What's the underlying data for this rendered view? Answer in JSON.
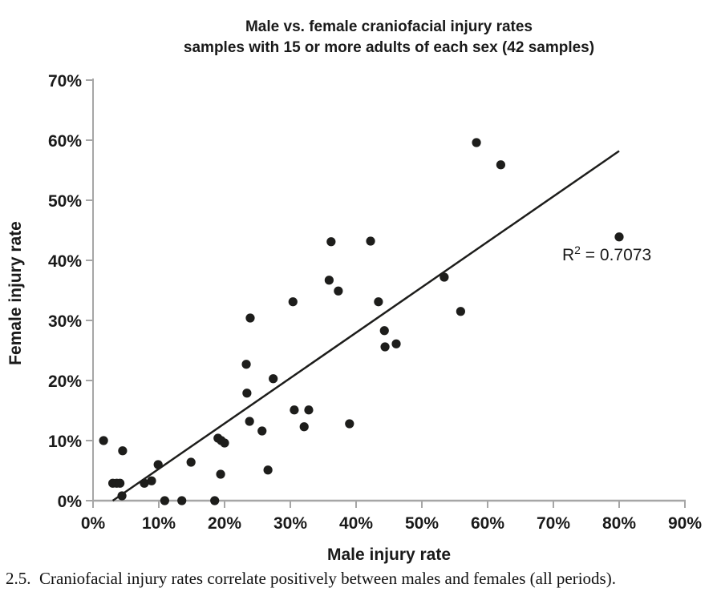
{
  "chart": {
    "title_line1": "Male vs. female craniofacial injury rates",
    "title_line2": "samples with 15 or more adults of each sex (42 samples)"
  },
  "annotation": {
    "base": "R",
    "sup": "2",
    "rest": " = 0.7073"
  },
  "caption": "2.5.  Craniofacial injury rates correlate positively between males and females (all periods).",
  "colors": {
    "ink": "#1d1d1b",
    "axis": "#a6a6a6",
    "text": "#1a1a1a",
    "background": "#ffffff"
  },
  "chart_data": {
    "type": "scatter",
    "title": "Male vs. female craniofacial injury rates — samples with 15 or more adults of each sex (42 samples)",
    "xlabel": "Male injury rate",
    "ylabel": "Female  injury rate",
    "xlim": [
      0,
      90
    ],
    "ylim": [
      0,
      70
    ],
    "x_tick_values": [
      0,
      10,
      20,
      30,
      40,
      50,
      60,
      70,
      80,
      90
    ],
    "x_tick_labels": [
      "0%",
      "10%",
      "20%",
      "30%",
      "40%",
      "50%",
      "60%",
      "70%",
      "80%",
      "90%"
    ],
    "y_tick_values": [
      0,
      10,
      20,
      30,
      40,
      50,
      60,
      70
    ],
    "y_tick_labels": [
      "0%",
      "10%",
      "20%",
      "30%",
      "40%",
      "50%",
      "60%",
      "70%"
    ],
    "grid": false,
    "legend": "none",
    "r_squared": 0.7073,
    "annotation_position_pct": {
      "x": 76,
      "y": 41
    },
    "trendline": {
      "x1": 3.0,
      "y1": 0.0,
      "x2": 80.0,
      "y2": 58.2
    },
    "points": [
      [
        1.6,
        10.0
      ],
      [
        4.5,
        8.3
      ],
      [
        3.0,
        2.9
      ],
      [
        3.6,
        2.9
      ],
      [
        4.1,
        2.9
      ],
      [
        4.4,
        0.8
      ],
      [
        7.8,
        2.9
      ],
      [
        8.9,
        3.3
      ],
      [
        9.9,
        6.0
      ],
      [
        10.9,
        0.0
      ],
      [
        13.5,
        0.0
      ],
      [
        14.9,
        6.4
      ],
      [
        18.5,
        0.0
      ],
      [
        19.0,
        10.4
      ],
      [
        19.5,
        10.0
      ],
      [
        20.0,
        9.6
      ],
      [
        19.4,
        4.4
      ],
      [
        23.3,
        22.7
      ],
      [
        27.4,
        20.3
      ],
      [
        23.4,
        17.9
      ],
      [
        30.6,
        15.1
      ],
      [
        32.8,
        15.1
      ],
      [
        32.1,
        12.3
      ],
      [
        23.8,
        13.2
      ],
      [
        25.7,
        11.6
      ],
      [
        39.0,
        12.8
      ],
      [
        26.6,
        5.1
      ],
      [
        36.2,
        43.1
      ],
      [
        42.2,
        43.2
      ],
      [
        35.9,
        36.7
      ],
      [
        37.3,
        34.9
      ],
      [
        30.4,
        33.1
      ],
      [
        43.4,
        33.1
      ],
      [
        23.9,
        30.4
      ],
      [
        44.3,
        28.3
      ],
      [
        44.4,
        25.6
      ],
      [
        46.1,
        26.1
      ],
      [
        58.3,
        59.6
      ],
      [
        62.0,
        55.9
      ],
      [
        80.0,
        43.9
      ],
      [
        53.4,
        37.2
      ],
      [
        55.9,
        31.5
      ]
    ]
  }
}
